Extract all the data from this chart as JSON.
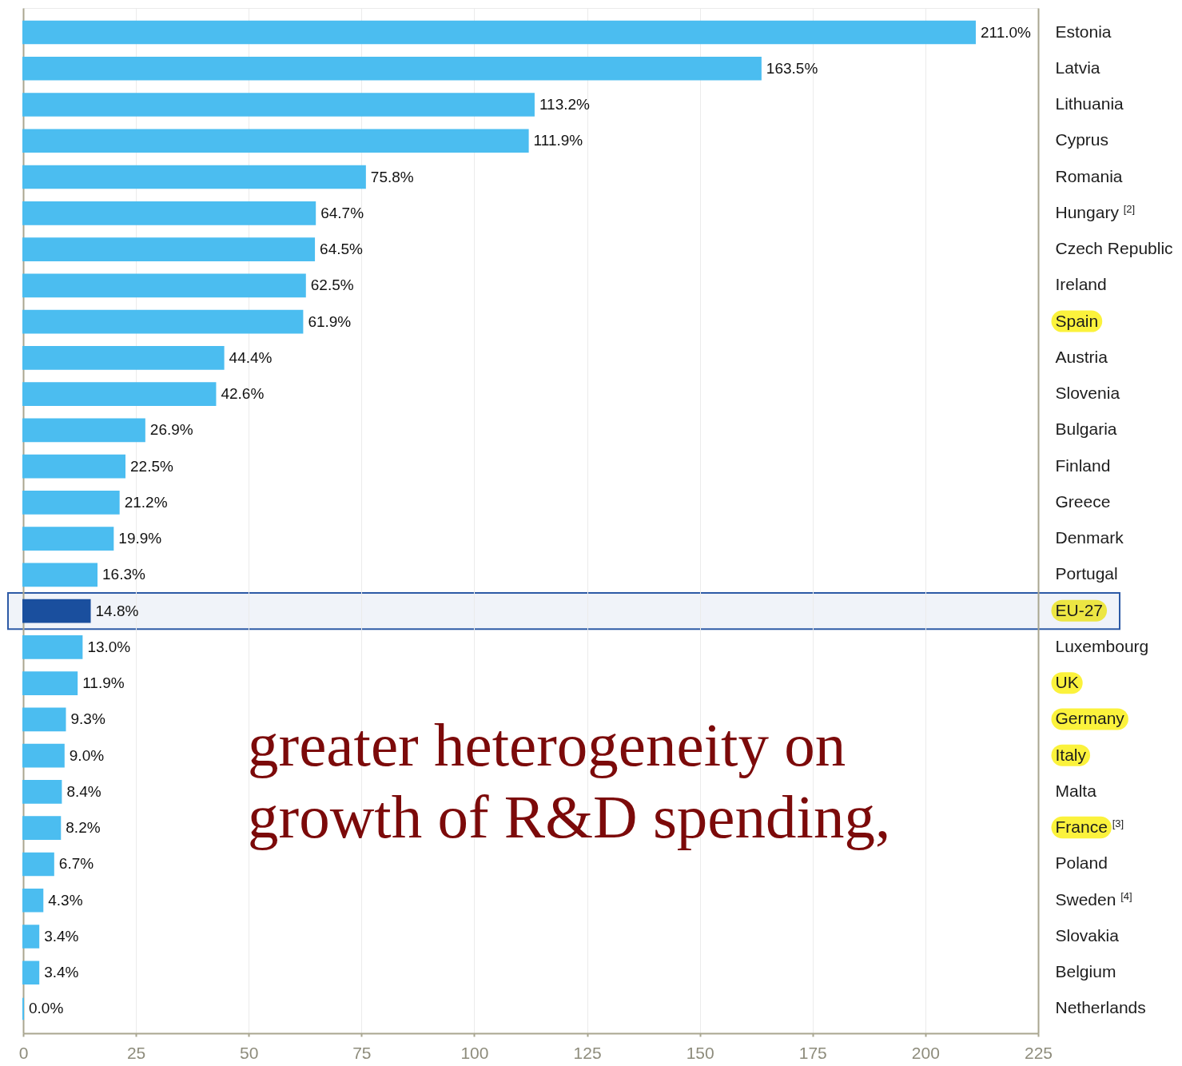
{
  "chart_data": {
    "type": "bar",
    "orientation": "horizontal",
    "categories": [
      "Estonia",
      "Latvia",
      "Lithuania",
      "Cyprus",
      "Romania",
      "Hungary $^{[2]}$",
      "Czech Republic",
      "Ireland",
      "Spain",
      "Austria",
      "Slovenia",
      "Bulgaria",
      "Finland",
      "Greece",
      "Denmark",
      "Portugal",
      "EU-27",
      "Luxembourg",
      "UK",
      "Germany",
      "Italy",
      "Malta",
      "France $^{[3]}$",
      "Poland",
      "Sweden $^{[4]}$",
      "Slovakia",
      "Belgium",
      "Netherlands"
    ],
    "values": [
      211.0,
      163.5,
      113.2,
      111.9,
      75.8,
      64.7,
      64.5,
      62.5,
      61.9,
      44.4,
      42.6,
      26.9,
      22.5,
      21.2,
      19.9,
      16.3,
      14.8,
      13.0,
      11.9,
      9.3,
      9.0,
      8.4,
      8.2,
      6.7,
      4.3,
      3.4,
      3.4,
      0.0
    ],
    "value_labels": [
      "211.0%",
      "163.5%",
      "113.2%",
      "111.9%",
      "75.8%",
      "64.7%",
      "64.5%",
      "62.5%",
      "61.9%",
      "44.4%",
      "42.6%",
      "26.9%",
      "22.5%",
      "21.2%",
      "19.9%",
      "16.3%",
      "14.8%",
      "13.0%",
      "11.9%",
      "9.3%",
      "9.0%",
      "8.4%",
      "8.2%",
      "6.7%",
      "4.3%",
      "3.4%",
      "3.4%",
      "0.0%"
    ],
    "colors": [
      "#4bbdf0",
      "#4bbdf0",
      "#4bbdf0",
      "#4bbdf0",
      "#4bbdf0",
      "#4bbdf0",
      "#4bbdf0",
      "#4bbdf0",
      "#4bbdf0",
      "#4bbdf0",
      "#4bbdf0",
      "#4bbdf0",
      "#4bbdf0",
      "#4bbdf0",
      "#4bbdf0",
      "#4bbdf0",
      "#1a4f9e",
      "#4bbdf0",
      "#4bbdf0",
      "#4bbdf0",
      "#4bbdf0",
      "#4bbdf0",
      "#4bbdf0",
      "#4bbdf0",
      "#4bbdf0",
      "#4bbdf0",
      "#4bbdf0",
      "#4bbdf0"
    ],
    "xlim": [
      0,
      225
    ],
    "xticks": [
      0,
      25,
      50,
      75,
      100,
      125,
      150,
      175,
      200,
      225
    ],
    "grid": "x",
    "bands": [
      {
        "axis": "y",
        "from": "EU-27",
        "to": "EU-27",
        "color": "#2d5aa6"
      }
    ],
    "annotations": [
      "greater heterogeneity on growth of R&D spending,"
    ]
  }
}
